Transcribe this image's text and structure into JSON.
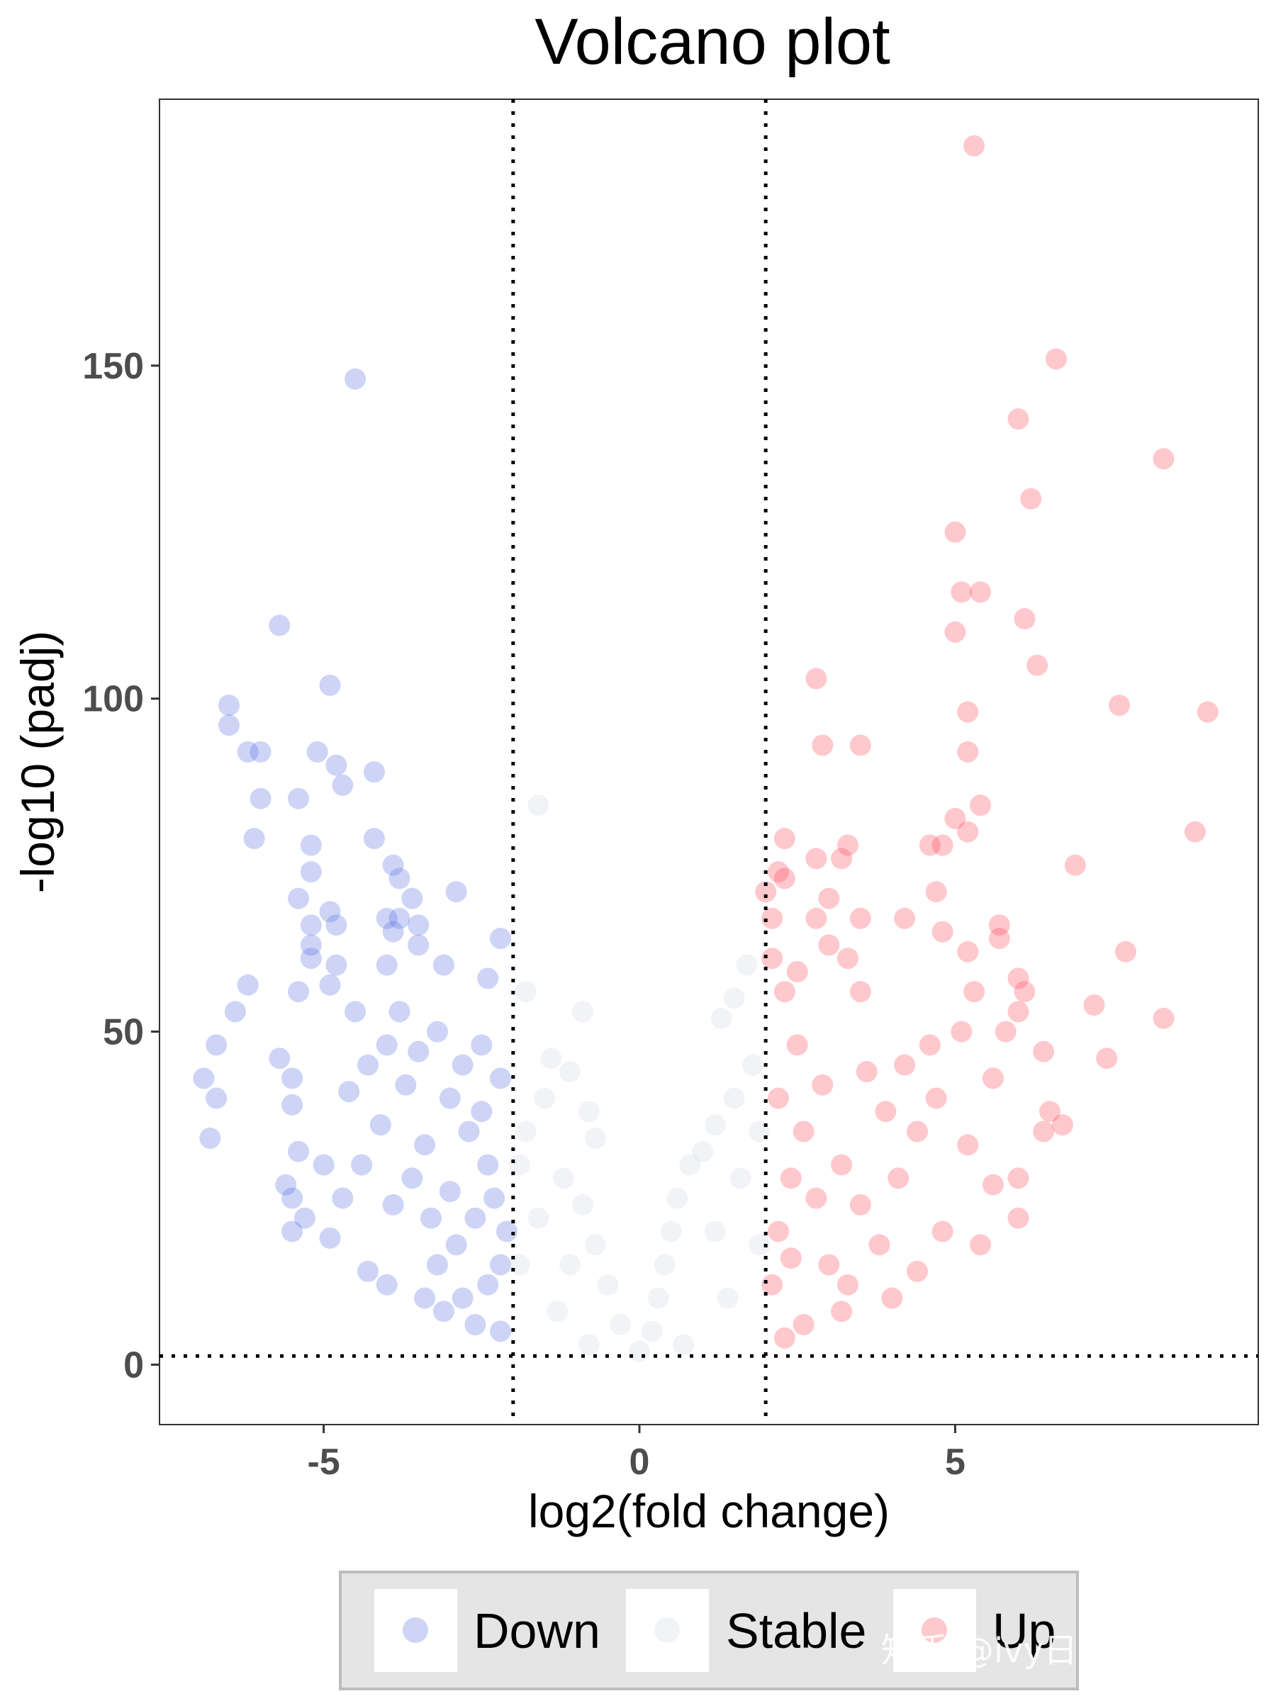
{
  "watermark": "知乎 @ivy日落跌进星河",
  "chart_data": {
    "type": "scatter",
    "title": "Volcano plot",
    "xlabel": "log2(fold change)",
    "ylabel": "-log10 (padj)",
    "xlim": [
      -7.6,
      9.8
    ],
    "ylim": [
      -9,
      190
    ],
    "xticks": [
      -5,
      0,
      5
    ],
    "yticks": [
      0,
      50,
      100,
      150
    ],
    "grid": false,
    "legend_position": "bottom",
    "thresholds": {
      "x": [
        -2,
        2
      ],
      "y": 1.3
    },
    "colors": {
      "Down": "#5b6fe0",
      "Stable": "#d0d7e1",
      "Up": "#ff4a5a"
    },
    "series": [
      {
        "name": "Down",
        "color": "#5b6fe0",
        "points": [
          [
            -4.5,
            148
          ],
          [
            -5.7,
            111
          ],
          [
            -4.9,
            102
          ],
          [
            -6.5,
            99
          ],
          [
            -6.5,
            96
          ],
          [
            -6.2,
            92
          ],
          [
            -6.0,
            92
          ],
          [
            -5.1,
            92
          ],
          [
            -4.8,
            90
          ],
          [
            -4.7,
            87
          ],
          [
            -4.2,
            89
          ],
          [
            -6.0,
            85
          ],
          [
            -5.4,
            85
          ],
          [
            -6.1,
            79
          ],
          [
            -5.2,
            78
          ],
          [
            -4.2,
            79
          ],
          [
            -3.9,
            75
          ],
          [
            -5.2,
            74
          ],
          [
            -3.8,
            73
          ],
          [
            -2.9,
            71
          ],
          [
            -3.6,
            70
          ],
          [
            -5.4,
            70
          ],
          [
            -4.9,
            68
          ],
          [
            -4.0,
            67
          ],
          [
            -3.8,
            67
          ],
          [
            -3.5,
            66
          ],
          [
            -5.2,
            66
          ],
          [
            -4.8,
            66
          ],
          [
            -3.9,
            65
          ],
          [
            -5.2,
            63
          ],
          [
            -3.5,
            63
          ],
          [
            -2.2,
            64
          ],
          [
            -5.2,
            61
          ],
          [
            -4.8,
            60
          ],
          [
            -4.0,
            60
          ],
          [
            -3.1,
            60
          ],
          [
            -6.2,
            57
          ],
          [
            -5.4,
            56
          ],
          [
            -4.9,
            57
          ],
          [
            -2.4,
            58
          ],
          [
            -6.4,
            53
          ],
          [
            -4.5,
            53
          ],
          [
            -3.8,
            53
          ],
          [
            -6.7,
            48
          ],
          [
            -5.7,
            46
          ],
          [
            -5.5,
            43
          ],
          [
            -6.9,
            43
          ],
          [
            -6.7,
            40
          ],
          [
            -6.8,
            34
          ],
          [
            -5.5,
            39
          ],
          [
            -5.4,
            32
          ],
          [
            -5.0,
            30
          ],
          [
            -5.6,
            27
          ],
          [
            -5.5,
            25
          ],
          [
            -5.3,
            22
          ],
          [
            -5.5,
            20
          ],
          [
            -4.9,
            19
          ],
          [
            -4.3,
            14
          ],
          [
            -4.0,
            12
          ],
          [
            -3.4,
            10
          ],
          [
            -3.1,
            8
          ],
          [
            -2.6,
            6
          ],
          [
            -2.2,
            5
          ],
          [
            -2.5,
            48
          ],
          [
            -2.2,
            43
          ],
          [
            -4.3,
            45
          ],
          [
            -4.6,
            41
          ],
          [
            -4.1,
            36
          ],
          [
            -3.7,
            42
          ],
          [
            -3.4,
            33
          ],
          [
            -3.0,
            40
          ],
          [
            -2.7,
            35
          ],
          [
            -2.4,
            30
          ],
          [
            -2.3,
            25
          ],
          [
            -2.6,
            22
          ],
          [
            -2.9,
            18
          ],
          [
            -3.2,
            15
          ],
          [
            -2.4,
            12
          ],
          [
            -2.8,
            10
          ],
          [
            -2.1,
            20
          ],
          [
            -2.2,
            15
          ],
          [
            -3.6,
            28
          ],
          [
            -3.9,
            24
          ],
          [
            -4.4,
            30
          ],
          [
            -4.7,
            25
          ],
          [
            -3.3,
            22
          ],
          [
            -3.0,
            26
          ],
          [
            -2.5,
            38
          ],
          [
            -2.8,
            45
          ],
          [
            -3.5,
            47
          ],
          [
            -4.0,
            48
          ],
          [
            -3.2,
            50
          ]
        ]
      },
      {
        "name": "Stable",
        "color": "#d0d7e1",
        "points": [
          [
            -1.6,
            84
          ],
          [
            1.7,
            60
          ],
          [
            1.5,
            55
          ],
          [
            -0.9,
            53
          ],
          [
            -1.8,
            56
          ],
          [
            1.3,
            52
          ],
          [
            -1.4,
            46
          ],
          [
            -1.1,
            44
          ],
          [
            -0.8,
            38
          ],
          [
            -0.7,
            34
          ],
          [
            -1.5,
            40
          ],
          [
            -1.8,
            35
          ],
          [
            1.8,
            45
          ],
          [
            1.5,
            40
          ],
          [
            1.2,
            36
          ],
          [
            0.8,
            30
          ],
          [
            0.6,
            25
          ],
          [
            0.5,
            20
          ],
          [
            0.4,
            15
          ],
          [
            0.3,
            10
          ],
          [
            0.2,
            5
          ],
          [
            -0.3,
            6
          ],
          [
            -0.5,
            12
          ],
          [
            -0.7,
            18
          ],
          [
            -0.9,
            24
          ],
          [
            -1.2,
            28
          ],
          [
            1.0,
            32
          ],
          [
            1.6,
            28
          ],
          [
            -1.6,
            22
          ],
          [
            -1.9,
            15
          ],
          [
            1.9,
            18
          ],
          [
            1.4,
            10
          ],
          [
            -1.3,
            8
          ],
          [
            0.0,
            2
          ],
          [
            0.7,
            3
          ],
          [
            -0.8,
            3
          ],
          [
            1.2,
            20
          ],
          [
            -1.1,
            15
          ],
          [
            1.9,
            35
          ],
          [
            -1.9,
            30
          ]
        ]
      },
      {
        "name": "Up",
        "color": "#ff4a5a",
        "points": [
          [
            5.3,
            183
          ],
          [
            6.6,
            151
          ],
          [
            6.0,
            142
          ],
          [
            8.3,
            136
          ],
          [
            6.2,
            130
          ],
          [
            5.0,
            125
          ],
          [
            5.1,
            116
          ],
          [
            5.4,
            116
          ],
          [
            6.1,
            112
          ],
          [
            5.0,
            110
          ],
          [
            6.3,
            105
          ],
          [
            2.8,
            103
          ],
          [
            7.6,
            99
          ],
          [
            5.2,
            98
          ],
          [
            9.0,
            98
          ],
          [
            2.9,
            93
          ],
          [
            3.5,
            93
          ],
          [
            5.2,
            92
          ],
          [
            5.4,
            84
          ],
          [
            5.0,
            82
          ],
          [
            8.8,
            80
          ],
          [
            5.2,
            80
          ],
          [
            2.3,
            79
          ],
          [
            3.3,
            78
          ],
          [
            4.6,
            78
          ],
          [
            4.8,
            78
          ],
          [
            2.8,
            76
          ],
          [
            3.2,
            76
          ],
          [
            6.9,
            75
          ],
          [
            2.2,
            74
          ],
          [
            2.3,
            73
          ],
          [
            2.0,
            71
          ],
          [
            4.7,
            71
          ],
          [
            3.0,
            70
          ],
          [
            3.5,
            67
          ],
          [
            4.2,
            67
          ],
          [
            2.1,
            67
          ],
          [
            2.8,
            67
          ],
          [
            5.7,
            66
          ],
          [
            4.8,
            65
          ],
          [
            5.7,
            64
          ],
          [
            3.0,
            63
          ],
          [
            3.3,
            61
          ],
          [
            5.2,
            62
          ],
          [
            7.7,
            62
          ],
          [
            2.1,
            61
          ],
          [
            2.5,
            59
          ],
          [
            6.0,
            58
          ],
          [
            6.1,
            56
          ],
          [
            5.3,
            56
          ],
          [
            2.3,
            56
          ],
          [
            3.5,
            56
          ],
          [
            7.2,
            54
          ],
          [
            6.0,
            53
          ],
          [
            8.3,
            52
          ],
          [
            5.1,
            50
          ],
          [
            5.8,
            50
          ],
          [
            4.6,
            48
          ],
          [
            6.4,
            47
          ],
          [
            7.4,
            46
          ],
          [
            5.6,
            43
          ],
          [
            6.5,
            38
          ],
          [
            6.7,
            36
          ],
          [
            6.4,
            35
          ],
          [
            5.2,
            33
          ],
          [
            5.6,
            27
          ],
          [
            6.0,
            28
          ],
          [
            6.0,
            22
          ],
          [
            5.4,
            18
          ],
          [
            4.8,
            20
          ],
          [
            4.4,
            14
          ],
          [
            4.0,
            10
          ],
          [
            3.2,
            8
          ],
          [
            2.6,
            6
          ],
          [
            2.3,
            4
          ],
          [
            2.1,
            12
          ],
          [
            2.2,
            20
          ],
          [
            2.4,
            28
          ],
          [
            2.6,
            35
          ],
          [
            2.9,
            42
          ],
          [
            3.2,
            30
          ],
          [
            3.5,
            24
          ],
          [
            3.8,
            18
          ],
          [
            4.1,
            28
          ],
          [
            4.4,
            35
          ],
          [
            4.7,
            40
          ],
          [
            3.0,
            15
          ],
          [
            2.5,
            48
          ],
          [
            2.2,
            40
          ],
          [
            3.6,
            44
          ],
          [
            2.8,
            25
          ],
          [
            3.3,
            12
          ],
          [
            2.4,
            16
          ],
          [
            4.2,
            45
          ],
          [
            3.9,
            38
          ]
        ]
      }
    ]
  }
}
